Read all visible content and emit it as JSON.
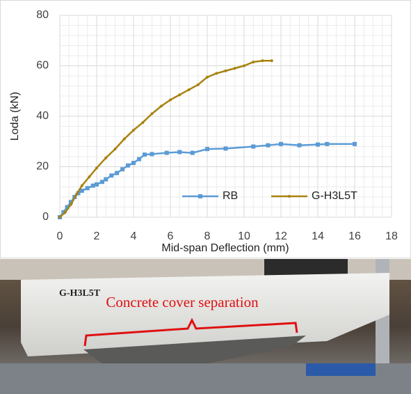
{
  "chart_data": {
    "type": "line",
    "x_label": "Mid-span Deflection (mm)",
    "y_label": "Loda (kN)",
    "xlim": [
      0,
      18
    ],
    "xticks": [
      0,
      2,
      4,
      6,
      8,
      10,
      12,
      14,
      16,
      18
    ],
    "ylim": [
      0,
      80
    ],
    "yticks": [
      0,
      20,
      40,
      60,
      80
    ],
    "grid": true,
    "minor_grid": true,
    "legend_position": "lower right",
    "series": [
      {
        "name": "RB",
        "color": "#5b9bd5",
        "marker": "square",
        "x": [
          0,
          0.2,
          0.4,
          0.6,
          0.8,
          1,
          1.2,
          1.5,
          1.8,
          2,
          2.3,
          2.5,
          2.8,
          3.1,
          3.4,
          3.7,
          4,
          4.3,
          4.6,
          5,
          5.8,
          6.5,
          7.2,
          8,
          9,
          10.5,
          11.3,
          12,
          13,
          14,
          14.5,
          16
        ],
        "values": [
          0,
          2,
          4,
          6,
          8,
          9.5,
          10.5,
          11.5,
          12.5,
          13,
          14,
          15,
          16.5,
          17.5,
          19,
          20.5,
          21.5,
          23,
          24.8,
          25,
          25.5,
          25.8,
          25.5,
          27,
          27.2,
          28,
          28.5,
          29,
          28.5,
          28.8,
          29,
          29
        ]
      },
      {
        "name": "G-H3L5T",
        "color": "#a8820f",
        "marker": "circle",
        "x": [
          0,
          0.3,
          0.6,
          0.9,
          1.2,
          1.6,
          2,
          2.5,
          3,
          3.5,
          4,
          4.5,
          5,
          5.5,
          6,
          6.5,
          7,
          7.5,
          8,
          8.5,
          9,
          9.5,
          10,
          10.5,
          11,
          11.5
        ],
        "values": [
          0,
          2,
          5,
          9,
          12.5,
          16,
          19.5,
          23.5,
          27,
          31,
          34.5,
          37.5,
          41,
          44,
          46.5,
          48.5,
          50.5,
          52.5,
          55.5,
          57,
          58,
          59,
          60,
          61.5,
          62,
          62
        ]
      }
    ]
  },
  "photo": {
    "beam_label": "G-H3L5T",
    "annotation": "Concrete cover separation"
  }
}
